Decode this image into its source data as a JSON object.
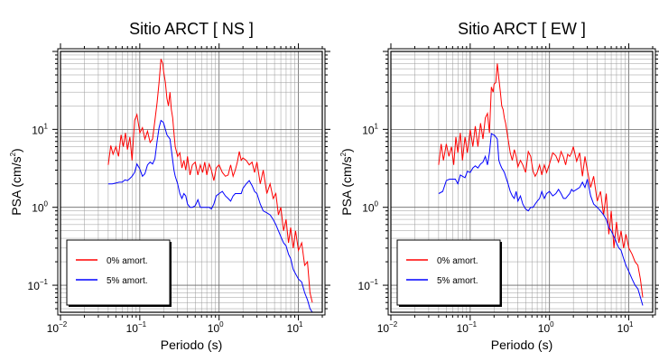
{
  "chart_data": [
    {
      "type": "line",
      "title": "Sitio ARCT [ NS ]",
      "xlabel": "Periodo (s)",
      "ylabel": "PSA (cm/s2)",
      "xscale": "log",
      "yscale": "log",
      "xlim": [
        0.01,
        20
      ],
      "ylim": [
        0.045,
        100
      ],
      "grid": true,
      "legend_position": "bottom-left",
      "xticks": [
        {
          "base": "10",
          "exp": "−2"
        },
        {
          "base": "10",
          "exp": "−1"
        },
        {
          "base": "10",
          "exp": "0"
        },
        {
          "base": "10",
          "exp": "1"
        }
      ],
      "yticks": [
        {
          "base": "10",
          "exp": "−1"
        },
        {
          "base": "10",
          "exp": "0"
        },
        {
          "base": "10",
          "exp": "1"
        }
      ],
      "series": [
        {
          "name": "0% amort.",
          "color": "#ff0000",
          "x": [
            0.04,
            0.043,
            0.046,
            0.05,
            0.054,
            0.058,
            0.062,
            0.066,
            0.07,
            0.075,
            0.08,
            0.086,
            0.092,
            0.1,
            0.108,
            0.116,
            0.125,
            0.135,
            0.145,
            0.155,
            0.165,
            0.175,
            0.185,
            0.195,
            0.2,
            0.21,
            0.22,
            0.23,
            0.24,
            0.25,
            0.26,
            0.27,
            0.28,
            0.3,
            0.32,
            0.34,
            0.36,
            0.38,
            0.4,
            0.43,
            0.46,
            0.5,
            0.54,
            0.58,
            0.62,
            0.66,
            0.7,
            0.75,
            0.8,
            0.86,
            0.92,
            1.0,
            1.1,
            1.2,
            1.3,
            1.4,
            1.5,
            1.6,
            1.7,
            1.8,
            1.9,
            2.0,
            2.2,
            2.4,
            2.6,
            2.8,
            3.0,
            3.3,
            3.6,
            4.0,
            4.4,
            4.8,
            5.2,
            5.6,
            6.0,
            6.5,
            7.0,
            7.5,
            8.0,
            8.6,
            9.2,
            10.0,
            11.0,
            12.0,
            13.0,
            14.0,
            15.0
          ],
          "values": [
            3.5,
            6.2,
            4.8,
            6.0,
            4.5,
            8.5,
            6.0,
            9.0,
            5.5,
            8.0,
            4.0,
            13.0,
            15.5,
            9.0,
            10.5,
            7.5,
            9.5,
            6.8,
            7.5,
            13.0,
            22.0,
            40.0,
            80.0,
            70.0,
            55.0,
            40.0,
            25.0,
            20.0,
            30.0,
            18.0,
            14.0,
            9.0,
            6.0,
            4.5,
            5.0,
            3.2,
            4.0,
            3.0,
            4.5,
            2.6,
            3.5,
            3.8,
            2.6,
            3.5,
            2.8,
            3.8,
            2.6,
            3.6,
            3.0,
            2.2,
            3.2,
            3.5,
            2.8,
            2.5,
            2.6,
            3.5,
            2.5,
            3.0,
            3.8,
            5.2,
            4.0,
            4.3,
            4.0,
            3.5,
            3.8,
            2.8,
            3.8,
            2.0,
            3.0,
            1.5,
            2.0,
            1.3,
            1.5,
            0.8,
            1.0,
            0.5,
            0.7,
            0.35,
            0.55,
            0.3,
            0.5,
            0.28,
            0.35,
            0.18,
            0.2,
            0.08,
            0.06
          ]
        },
        {
          "name": "5% amort.",
          "color": "#0000ff",
          "x": [
            0.04,
            0.045,
            0.05,
            0.055,
            0.06,
            0.065,
            0.07,
            0.075,
            0.08,
            0.086,
            0.092,
            0.1,
            0.108,
            0.116,
            0.125,
            0.135,
            0.145,
            0.155,
            0.165,
            0.175,
            0.185,
            0.195,
            0.2,
            0.21,
            0.22,
            0.23,
            0.24,
            0.25,
            0.26,
            0.27,
            0.28,
            0.3,
            0.32,
            0.34,
            0.36,
            0.38,
            0.4,
            0.43,
            0.46,
            0.5,
            0.54,
            0.58,
            0.62,
            0.66,
            0.7,
            0.75,
            0.8,
            0.86,
            0.92,
            1.0,
            1.1,
            1.2,
            1.3,
            1.4,
            1.5,
            1.6,
            1.7,
            1.8,
            1.9,
            2.0,
            2.2,
            2.4,
            2.6,
            2.8,
            3.0,
            3.3,
            3.6,
            4.0,
            4.4,
            4.8,
            5.2,
            5.6,
            6.0,
            6.5,
            7.0,
            7.5,
            8.0,
            8.6,
            9.2,
            10.0,
            11.0,
            12.0,
            13.0,
            14.0,
            15.0
          ],
          "values": [
            2.0,
            2.0,
            2.05,
            2.1,
            2.1,
            2.25,
            2.2,
            2.35,
            2.5,
            2.8,
            3.6,
            3.1,
            2.5,
            2.7,
            3.5,
            3.8,
            3.6,
            4.2,
            7.0,
            10.5,
            13.0,
            12.5,
            12.0,
            10.0,
            8.5,
            8.0,
            7.5,
            5.5,
            4.0,
            3.0,
            2.5,
            2.0,
            1.5,
            1.3,
            1.5,
            1.4,
            1.1,
            1.0,
            1.0,
            1.05,
            1.25,
            1.0,
            1.0,
            1.0,
            1.0,
            1.0,
            0.95,
            1.1,
            1.4,
            1.5,
            1.6,
            1.4,
            1.3,
            1.2,
            1.4,
            1.5,
            1.5,
            1.5,
            1.5,
            1.75,
            2.0,
            2.2,
            1.9,
            1.6,
            1.5,
            1.1,
            0.9,
            0.85,
            0.8,
            0.7,
            0.6,
            0.5,
            0.42,
            0.35,
            0.32,
            0.25,
            0.22,
            0.16,
            0.14,
            0.12,
            0.11,
            0.08,
            0.065,
            0.05,
            0.045
          ]
        }
      ]
    },
    {
      "type": "line",
      "title": "Sitio ARCT [ EW ]",
      "xlabel": "Periodo (s)",
      "ylabel": "PSA (cm/s2)",
      "xscale": "log",
      "yscale": "log",
      "xlim": [
        0.01,
        20
      ],
      "ylim": [
        0.045,
        100
      ],
      "grid": true,
      "legend_position": "bottom-left",
      "xticks": [
        {
          "base": "10",
          "exp": "−2"
        },
        {
          "base": "10",
          "exp": "−1"
        },
        {
          "base": "10",
          "exp": "0"
        },
        {
          "base": "10",
          "exp": "1"
        }
      ],
      "yticks": [
        {
          "base": "10",
          "exp": "−1"
        },
        {
          "base": "10",
          "exp": "0"
        },
        {
          "base": "10",
          "exp": "1"
        }
      ],
      "series": [
        {
          "name": "0% amort.",
          "color": "#ff0000",
          "x": [
            0.04,
            0.043,
            0.046,
            0.05,
            0.054,
            0.058,
            0.062,
            0.066,
            0.07,
            0.075,
            0.08,
            0.086,
            0.092,
            0.1,
            0.108,
            0.116,
            0.125,
            0.135,
            0.145,
            0.155,
            0.165,
            0.175,
            0.185,
            0.195,
            0.2,
            0.21,
            0.22,
            0.23,
            0.24,
            0.25,
            0.26,
            0.27,
            0.28,
            0.3,
            0.32,
            0.34,
            0.36,
            0.38,
            0.4,
            0.43,
            0.46,
            0.5,
            0.54,
            0.58,
            0.62,
            0.66,
            0.7,
            0.75,
            0.8,
            0.86,
            0.92,
            1.0,
            1.1,
            1.2,
            1.3,
            1.4,
            1.5,
            1.6,
            1.7,
            1.8,
            1.9,
            2.0,
            2.2,
            2.4,
            2.6,
            2.8,
            3.0,
            3.3,
            3.6,
            4.0,
            4.4,
            4.8,
            5.2,
            5.6,
            6.0,
            6.5,
            7.0,
            7.5,
            8.0,
            8.6,
            9.2,
            10.0,
            11.0,
            12.0,
            13.0,
            14.0,
            15.0
          ],
          "values": [
            3.5,
            6.5,
            4.0,
            6.5,
            4.5,
            6.0,
            3.5,
            8.0,
            5.0,
            9.0,
            4.0,
            8.0,
            5.0,
            10.0,
            6.0,
            11.0,
            6.0,
            12.0,
            7.5,
            14.0,
            16.0,
            9.0,
            35.0,
            30.0,
            38.0,
            40.0,
            70.0,
            45.0,
            30.0,
            20.0,
            18.0,
            14.0,
            12.0,
            7.5,
            5.0,
            4.0,
            5.5,
            4.5,
            3.3,
            4.0,
            3.5,
            2.8,
            5.2,
            4.5,
            2.9,
            2.5,
            2.8,
            3.5,
            2.6,
            3.5,
            2.8,
            3.6,
            5.0,
            4.6,
            3.8,
            5.2,
            4.4,
            3.5,
            4.8,
            4.5,
            5.0,
            6.0,
            3.9,
            5.0,
            2.5,
            4.5,
            3.0,
            1.8,
            2.5,
            1.2,
            1.6,
            0.8,
            1.5,
            0.45,
            0.9,
            0.3,
            0.65,
            0.35,
            0.5,
            0.3,
            0.45,
            0.3,
            0.25,
            0.2,
            0.18,
            0.12,
            0.07
          ]
        },
        {
          "name": "5% amort.",
          "color": "#0000ff",
          "x": [
            0.04,
            0.045,
            0.05,
            0.055,
            0.06,
            0.065,
            0.07,
            0.075,
            0.08,
            0.086,
            0.092,
            0.1,
            0.108,
            0.116,
            0.125,
            0.135,
            0.145,
            0.155,
            0.165,
            0.175,
            0.185,
            0.195,
            0.2,
            0.21,
            0.22,
            0.23,
            0.24,
            0.25,
            0.26,
            0.27,
            0.28,
            0.3,
            0.32,
            0.34,
            0.36,
            0.38,
            0.4,
            0.43,
            0.46,
            0.5,
            0.54,
            0.58,
            0.62,
            0.66,
            0.7,
            0.75,
            0.8,
            0.86,
            0.92,
            1.0,
            1.1,
            1.2,
            1.3,
            1.4,
            1.5,
            1.6,
            1.7,
            1.8,
            1.9,
            2.0,
            2.2,
            2.4,
            2.6,
            2.8,
            3.0,
            3.3,
            3.6,
            4.0,
            4.4,
            4.8,
            5.2,
            5.6,
            6.0,
            6.5,
            7.0,
            7.5,
            8.0,
            8.6,
            9.2,
            10.0,
            11.0,
            12.0,
            13.0,
            14.0,
            15.0
          ],
          "values": [
            1.5,
            1.6,
            2.2,
            2.3,
            2.3,
            2.3,
            2.0,
            2.6,
            2.5,
            2.4,
            2.9,
            2.8,
            3.2,
            3.4,
            3.2,
            3.6,
            3.8,
            4.5,
            3.5,
            5.0,
            8.8,
            8.5,
            8.5,
            8.0,
            7.5,
            4.0,
            3.5,
            3.2,
            3.0,
            2.8,
            2.5,
            2.0,
            1.6,
            1.4,
            1.3,
            1.6,
            1.2,
            1.4,
            1.1,
            0.95,
            0.9,
            1.0,
            1.0,
            1.1,
            1.2,
            1.3,
            1.6,
            1.3,
            1.5,
            1.6,
            1.4,
            1.5,
            1.7,
            1.5,
            1.3,
            1.3,
            1.4,
            1.5,
            1.7,
            1.6,
            1.7,
            1.8,
            2.1,
            1.8,
            2.3,
            1.4,
            1.1,
            1.0,
            0.9,
            0.8,
            0.7,
            0.55,
            0.5,
            0.42,
            0.35,
            0.3,
            0.28,
            0.22,
            0.18,
            0.15,
            0.12,
            0.1,
            0.09,
            0.07,
            0.055
          ]
        }
      ]
    }
  ]
}
